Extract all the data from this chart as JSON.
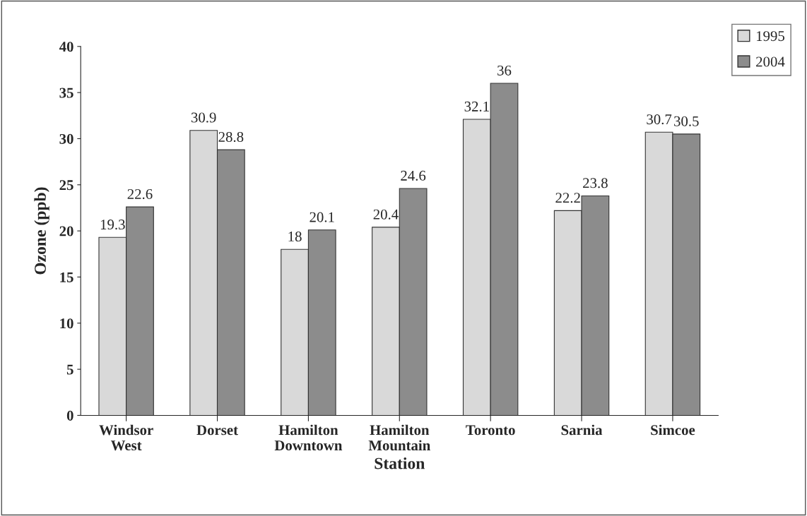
{
  "chart_data": {
    "type": "bar",
    "xlabel": "Station",
    "ylabel": "Ozone (ppb)",
    "categories": [
      "Windsor\nWest",
      "Dorset",
      "Hamilton\nDowntown",
      "Hamilton\nMountain",
      "Toronto",
      "Sarnia",
      "Simcoe"
    ],
    "series": [
      {
        "name": "1995",
        "color": "#d9d9d9",
        "values": [
          19.3,
          30.9,
          18,
          20.4,
          32.1,
          22.2,
          30.7
        ]
      },
      {
        "name": "2004",
        "color": "#8c8c8c",
        "values": [
          22.6,
          28.8,
          20.1,
          24.6,
          36,
          23.8,
          30.5
        ]
      }
    ],
    "ylim": [
      0,
      40
    ],
    "yticks": [
      0,
      5,
      10,
      15,
      20,
      25,
      30,
      35,
      40
    ],
    "data_labels": true,
    "grid": false,
    "legend": "top right"
  }
}
